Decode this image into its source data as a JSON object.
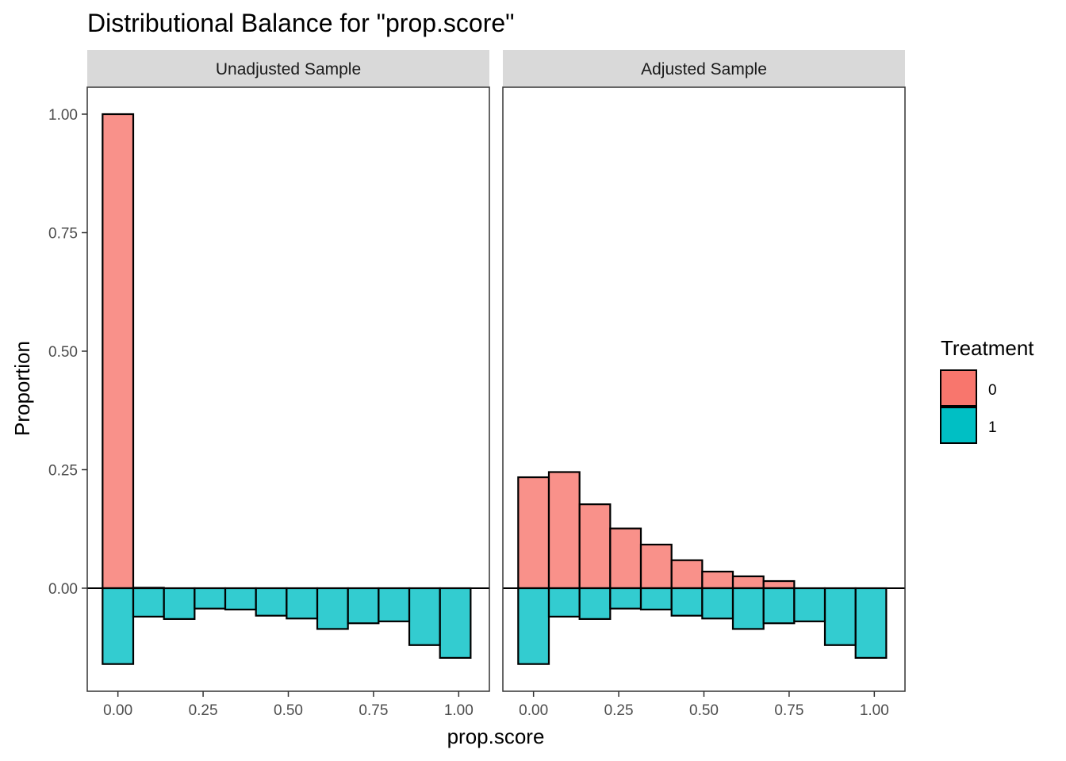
{
  "chart_data": {
    "type": "bar",
    "title": "Distributional Balance for \"prop.score\"",
    "xlabel": "prop.score",
    "ylabel": "Proportion",
    "x_ticks": [
      "0.00",
      "0.25",
      "0.50",
      "0.75",
      "1.00"
    ],
    "y_ticks": [
      "0.00",
      "0.25",
      "0.50",
      "0.75",
      "1.00"
    ],
    "xlim": [
      -0.09,
      1.09
    ],
    "ylim": [
      -0.22,
      1.06
    ],
    "bin_centers": [
      0.0,
      0.09,
      0.18,
      0.27,
      0.36,
      0.45,
      0.54,
      0.63,
      0.72,
      0.81,
      0.9,
      0.99
    ],
    "bin_width": 0.09,
    "grid": false,
    "legend": {
      "title": "Treatment",
      "position": "right",
      "entries": [
        {
          "label": "0",
          "color": "#F8766D"
        },
        {
          "label": "1",
          "color": "#00BFC4"
        }
      ]
    },
    "panels": [
      {
        "name": "Unadjusted Sample",
        "series": [
          {
            "name": "0",
            "values": [
              1.0,
              0.001,
              0.0,
              0.0,
              0.0,
              0.0,
              0.0,
              0.0,
              0.0,
              0.0,
              0.0,
              0.0
            ]
          },
          {
            "name": "1",
            "values": [
              -0.16,
              -0.06,
              -0.065,
              -0.043,
              -0.045,
              -0.058,
              -0.064,
              -0.086,
              -0.074,
              -0.07,
              -0.12,
              -0.147
            ]
          }
        ]
      },
      {
        "name": "Adjusted Sample",
        "series": [
          {
            "name": "0",
            "values": [
              0.234,
              0.245,
              0.177,
              0.126,
              0.092,
              0.059,
              0.035,
              0.025,
              0.015,
              0.0,
              0.0,
              0.0
            ]
          },
          {
            "name": "1",
            "values": [
              -0.16,
              -0.06,
              -0.065,
              -0.043,
              -0.045,
              -0.058,
              -0.064,
              -0.086,
              -0.074,
              -0.07,
              -0.12,
              -0.147
            ]
          }
        ]
      }
    ]
  },
  "colors": {
    "treatment_0_fill": "#F8766D",
    "treatment_1_fill": "#00BFC4",
    "strip_background": "#D9D9D9",
    "bar_outline": "#000000"
  }
}
